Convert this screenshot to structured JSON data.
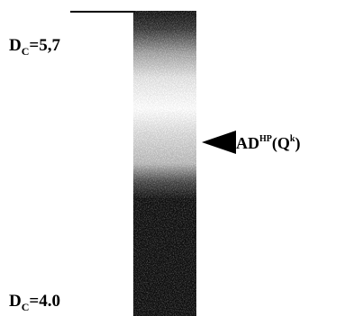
{
  "top_label": {
    "main": "D",
    "sub": "C",
    "rest": "=5,7"
  },
  "bottom_label": {
    "main": "D",
    "sub": "C",
    "rest": "=4.0"
  },
  "band_label": {
    "main": "AD",
    "sup": "HP",
    "mid": "(Q",
    "sup2": "k",
    "end": ")"
  }
}
